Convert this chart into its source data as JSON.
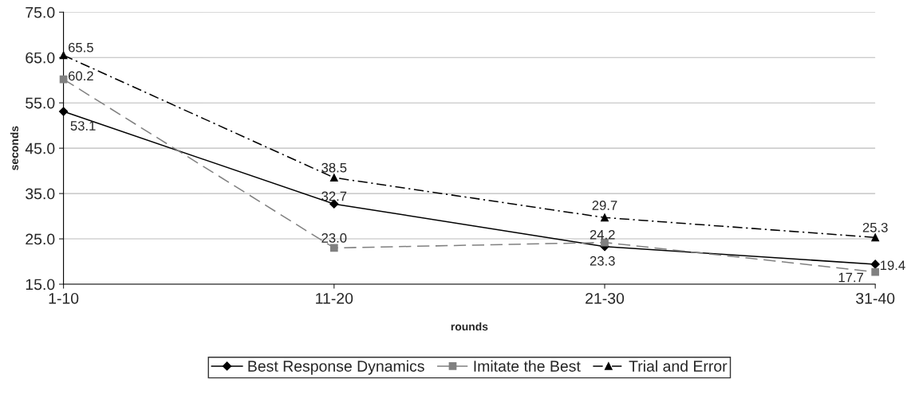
{
  "chart_data": {
    "type": "line",
    "xlabel": "rounds",
    "ylabel": "seconds",
    "categories": [
      "1-10",
      "11-20",
      "21-30",
      "31-40"
    ],
    "series": [
      {
        "name": "Best Response Dynamics",
        "color": "#000000",
        "values": [
          53.1,
          32.7,
          23.3,
          19.4
        ],
        "value_labels": [
          "53.1",
          "32.7",
          "23.3",
          "19.4"
        ],
        "marker": "diamond",
        "line_style": "solid"
      },
      {
        "name": "Imitate the Best",
        "color": "#808080",
        "values": [
          60.2,
          23.0,
          24.2,
          17.7
        ],
        "value_labels": [
          "60.2",
          "23.0",
          "24.2",
          "17.7"
        ],
        "marker": "square",
        "line_style": "dashed"
      },
      {
        "name": "Trial and Error",
        "color": "#000000",
        "values": [
          65.5,
          38.5,
          29.7,
          25.3
        ],
        "value_labels": [
          "65.5",
          "38.5",
          "29.7",
          "25.3"
        ],
        "marker": "triangle",
        "line_style": "dashdot"
      }
    ],
    "ylim": [
      15,
      75
    ],
    "yticks": [
      {
        "value": 15,
        "label": "15.0"
      },
      {
        "value": 25,
        "label": "25.0"
      },
      {
        "value": 35,
        "label": "35.0"
      },
      {
        "value": 45,
        "label": "45.0"
      },
      {
        "value": 55,
        "label": "55.0"
      },
      {
        "value": 65,
        "label": "65.0"
      },
      {
        "value": 75,
        "label": "75.0"
      }
    ],
    "grid": "y",
    "legend": "bottom"
  }
}
